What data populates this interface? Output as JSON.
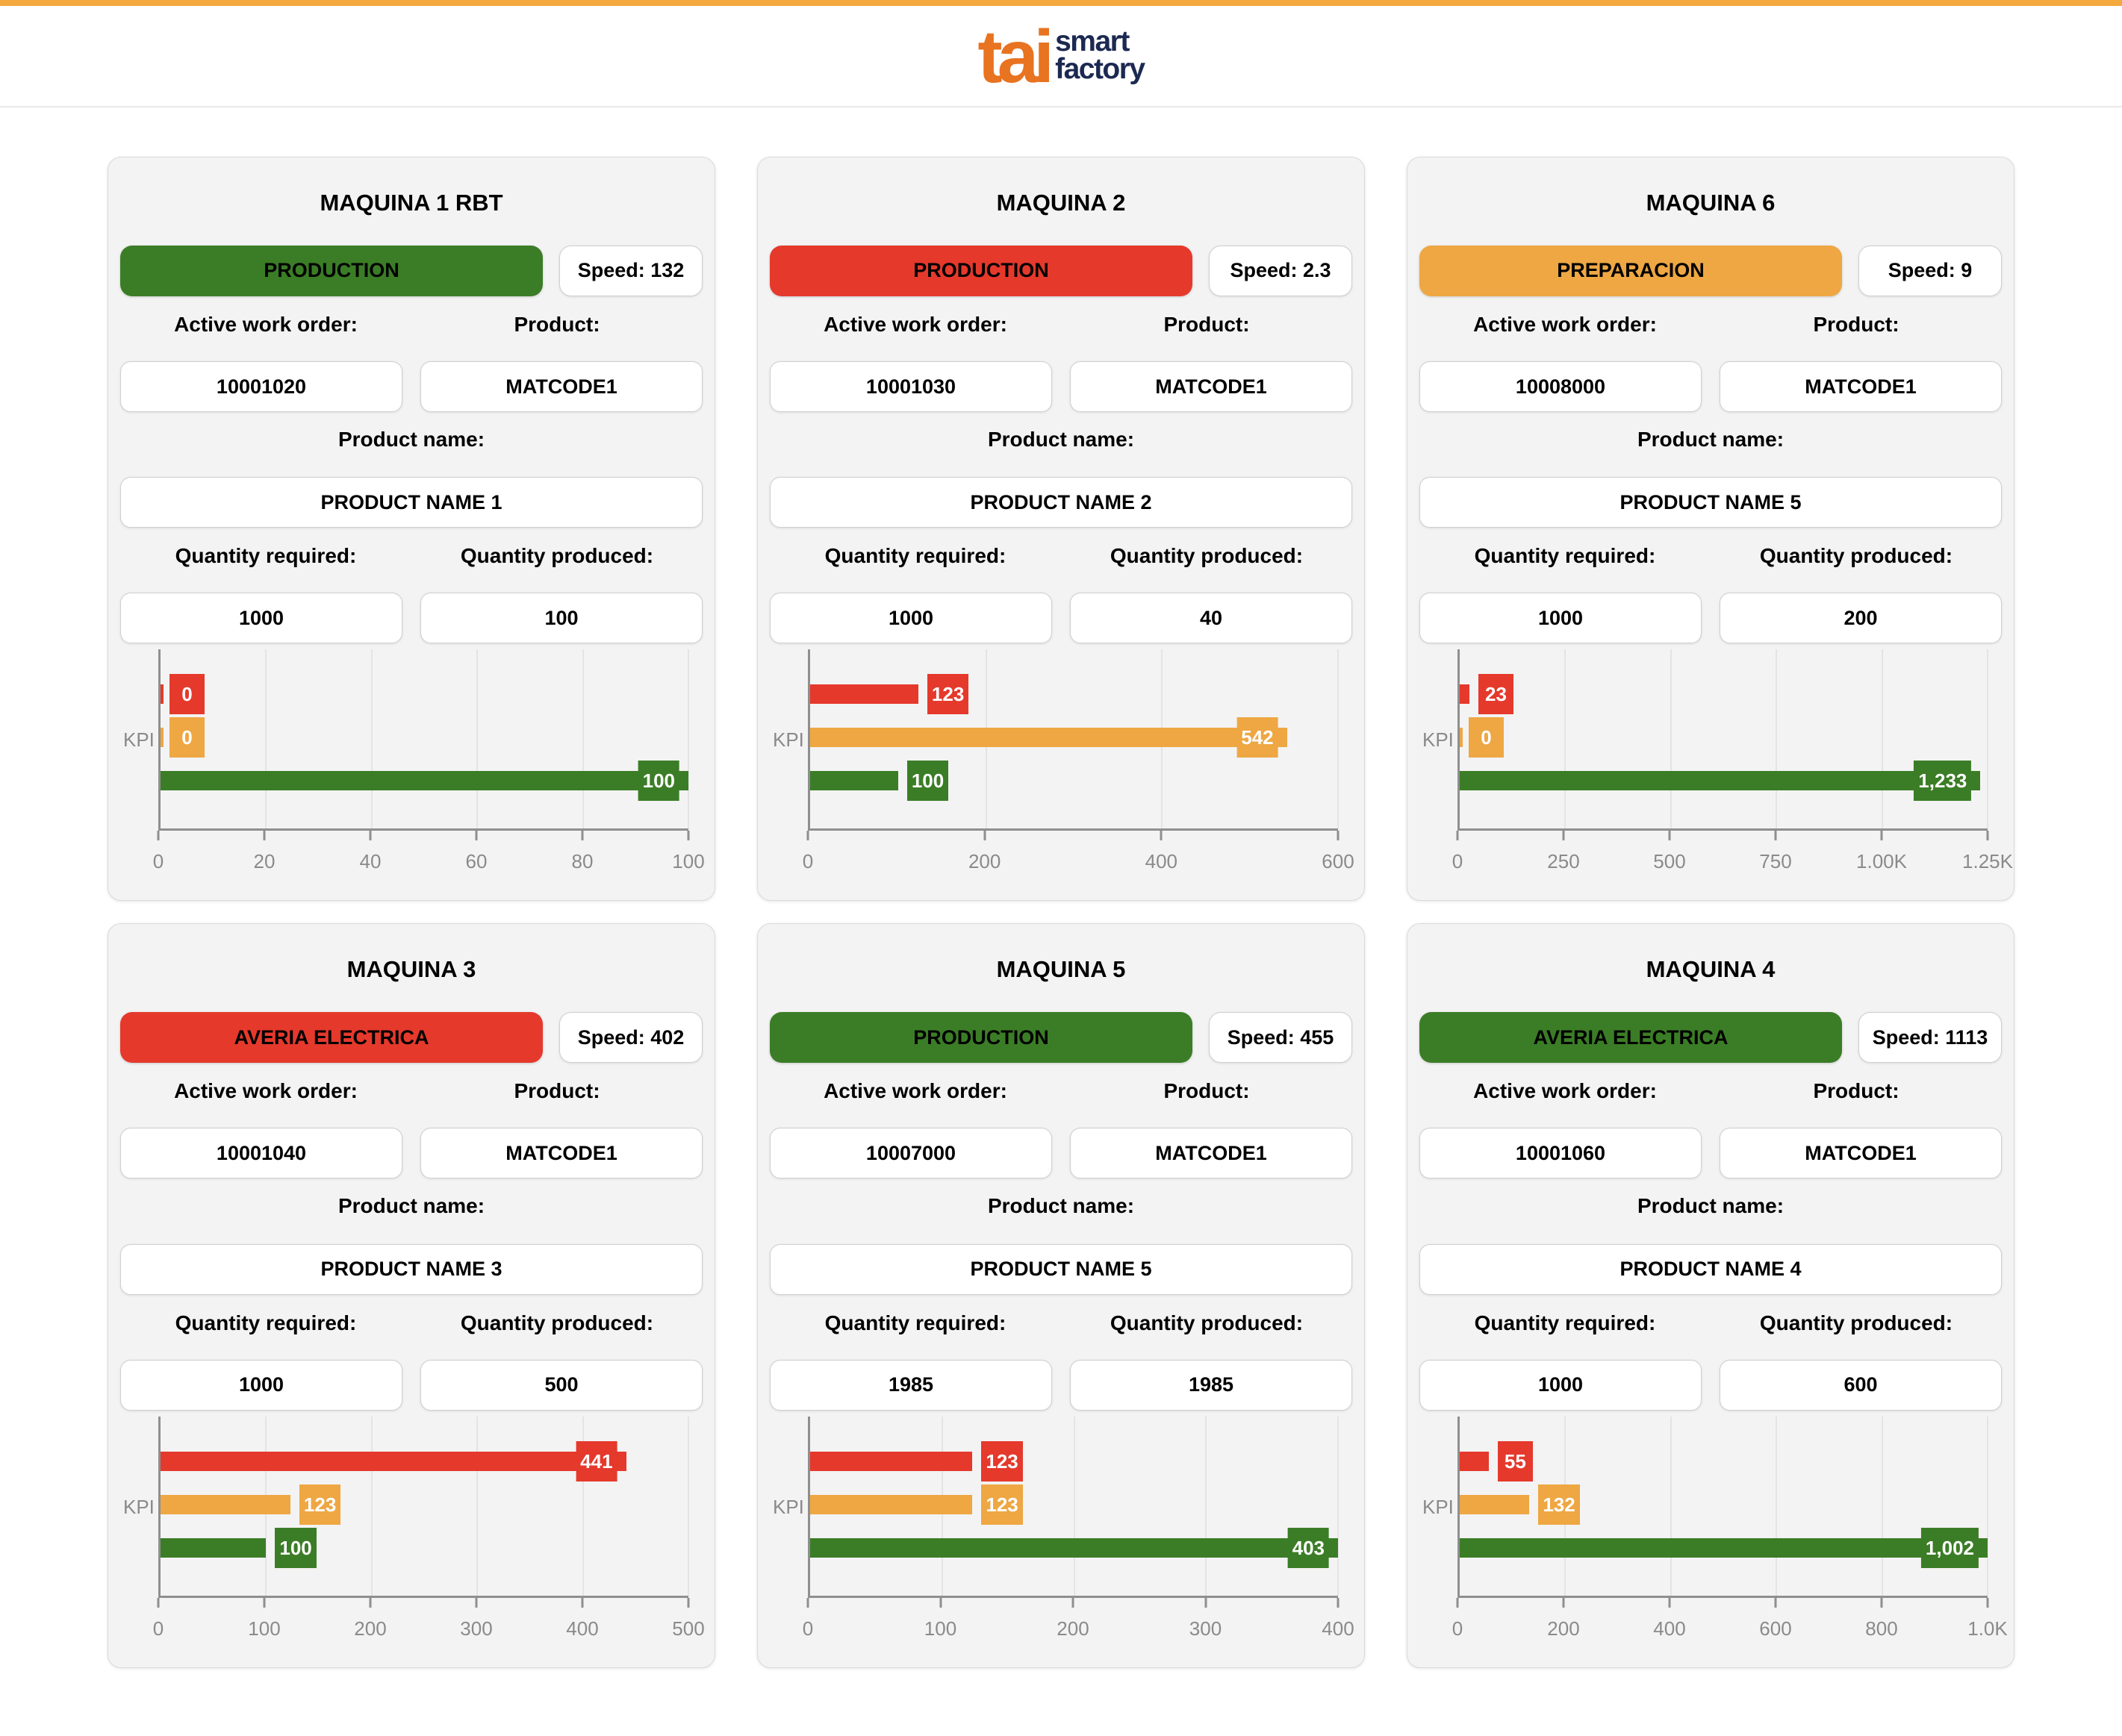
{
  "header": {
    "logo_tai": "tai",
    "logo_line1": "smart",
    "logo_line2": "factory"
  },
  "labels": {
    "active_work_order": "Active work order:",
    "product": "Product:",
    "product_name": "Product name:",
    "quantity_required": "Quantity required:",
    "quantity_produced": "Quantity produced:",
    "kpi": "KPI"
  },
  "colors": {
    "topbar_orange": "#f3a93d",
    "logo_orange": "#e87320",
    "logo_navy": "#1c2951",
    "status_green": "#3b7d26",
    "status_red": "#e5392c",
    "status_orange": "#eea743"
  },
  "machines": [
    {
      "title": "MAQUINA 1 RBT",
      "status_label": "PRODUCTION",
      "status_color": "#3b7d26",
      "speed_label": "Speed: 132",
      "work_order": "10001020",
      "product_code": "MATCODE1",
      "product_name": "PRODUCT NAME 1",
      "quantity_required": "1000",
      "quantity_produced": "100",
      "chart_data": {
        "type": "bar",
        "orientation": "horizontal",
        "category": "KPI",
        "xlim": [
          0,
          100
        ],
        "series": [
          {
            "name": "kpi-red",
            "color": "#e5392c",
            "value": 0,
            "label": "0"
          },
          {
            "name": "kpi-orange",
            "color": "#eea743",
            "value": 0,
            "label": "0"
          },
          {
            "name": "kpi-green",
            "color": "#3b7d26",
            "value": 100,
            "label": "100"
          }
        ],
        "ticks": [
          {
            "value": 0,
            "label": "0"
          },
          {
            "value": 20,
            "label": "20"
          },
          {
            "value": 40,
            "label": "40"
          },
          {
            "value": 60,
            "label": "60"
          },
          {
            "value": 80,
            "label": "80"
          },
          {
            "value": 100,
            "label": "100"
          }
        ]
      }
    },
    {
      "title": "MAQUINA 2",
      "status_label": "PRODUCTION",
      "status_color": "#e5392c",
      "speed_label": "Speed: 2.3",
      "work_order": "10001030",
      "product_code": "MATCODE1",
      "product_name": "PRODUCT NAME 2",
      "quantity_required": "1000",
      "quantity_produced": "40",
      "chart_data": {
        "type": "bar",
        "orientation": "horizontal",
        "category": "KPI",
        "xlim": [
          0,
          600
        ],
        "series": [
          {
            "name": "kpi-red",
            "color": "#e5392c",
            "value": 123,
            "label": "123"
          },
          {
            "name": "kpi-orange",
            "color": "#eea743",
            "value": 542,
            "label": "542"
          },
          {
            "name": "kpi-green",
            "color": "#3b7d26",
            "value": 100,
            "label": "100"
          }
        ],
        "ticks": [
          {
            "value": 0,
            "label": "0"
          },
          {
            "value": 200,
            "label": "200"
          },
          {
            "value": 400,
            "label": "400"
          },
          {
            "value": 600,
            "label": "600"
          }
        ]
      }
    },
    {
      "title": "MAQUINA 6",
      "status_label": "PREPARACION",
      "status_color": "#eea743",
      "speed_label": "Speed: 9",
      "work_order": "10008000",
      "product_code": "MATCODE1",
      "product_name": "PRODUCT NAME 5",
      "quantity_required": "1000",
      "quantity_produced": "200",
      "chart_data": {
        "type": "bar",
        "orientation": "horizontal",
        "category": "KPI",
        "xlim": [
          0,
          1250
        ],
        "series": [
          {
            "name": "kpi-red",
            "color": "#e5392c",
            "value": 23,
            "label": "23"
          },
          {
            "name": "kpi-orange",
            "color": "#eea743",
            "value": 0,
            "label": "0"
          },
          {
            "name": "kpi-green",
            "color": "#3b7d26",
            "value": 1233,
            "label": "1,233"
          }
        ],
        "ticks": [
          {
            "value": 0,
            "label": "0"
          },
          {
            "value": 250,
            "label": "250"
          },
          {
            "value": 500,
            "label": "500"
          },
          {
            "value": 750,
            "label": "750"
          },
          {
            "value": 1000,
            "label": "1.00K"
          },
          {
            "value": 1250,
            "label": "1.25K"
          }
        ]
      }
    },
    {
      "title": "MAQUINA 3",
      "status_label": "AVERIA ELECTRICA",
      "status_color": "#e5392c",
      "speed_label": "Speed: 402",
      "work_order": "10001040",
      "product_code": "MATCODE1",
      "product_name": "PRODUCT NAME 3",
      "quantity_required": "1000",
      "quantity_produced": "500",
      "chart_data": {
        "type": "bar",
        "orientation": "horizontal",
        "category": "KPI",
        "xlim": [
          0,
          500
        ],
        "series": [
          {
            "name": "kpi-red",
            "color": "#e5392c",
            "value": 441,
            "label": "441"
          },
          {
            "name": "kpi-orange",
            "color": "#eea743",
            "value": 123,
            "label": "123"
          },
          {
            "name": "kpi-green",
            "color": "#3b7d26",
            "value": 100,
            "label": "100"
          }
        ],
        "ticks": [
          {
            "value": 0,
            "label": "0"
          },
          {
            "value": 100,
            "label": "100"
          },
          {
            "value": 200,
            "label": "200"
          },
          {
            "value": 300,
            "label": "300"
          },
          {
            "value": 400,
            "label": "400"
          },
          {
            "value": 500,
            "label": "500"
          }
        ]
      }
    },
    {
      "title": "MAQUINA 5",
      "status_label": "PRODUCTION",
      "status_color": "#3b7d26",
      "speed_label": "Speed: 455",
      "work_order": "10007000",
      "product_code": "MATCODE1",
      "product_name": "PRODUCT NAME 5",
      "quantity_required": "1985",
      "quantity_produced": "1985",
      "chart_data": {
        "type": "bar",
        "orientation": "horizontal",
        "category": "KPI",
        "xlim": [
          0,
          400
        ],
        "series": [
          {
            "name": "kpi-red",
            "color": "#e5392c",
            "value": 123,
            "label": "123"
          },
          {
            "name": "kpi-orange",
            "color": "#eea743",
            "value": 123,
            "label": "123"
          },
          {
            "name": "kpi-green",
            "color": "#3b7d26",
            "value": 403,
            "label": "403"
          }
        ],
        "ticks": [
          {
            "value": 0,
            "label": "0"
          },
          {
            "value": 100,
            "label": "100"
          },
          {
            "value": 200,
            "label": "200"
          },
          {
            "value": 300,
            "label": "300"
          },
          {
            "value": 400,
            "label": "400"
          }
        ]
      }
    },
    {
      "title": "MAQUINA 4",
      "status_label": "AVERIA ELECTRICA",
      "status_color": "#3b7d26",
      "speed_label": "Speed: 1113",
      "work_order": "10001060",
      "product_code": "MATCODE1",
      "product_name": "PRODUCT NAME 4",
      "quantity_required": "1000",
      "quantity_produced": "600",
      "chart_data": {
        "type": "bar",
        "orientation": "horizontal",
        "category": "KPI",
        "xlim": [
          0,
          1000
        ],
        "series": [
          {
            "name": "kpi-red",
            "color": "#e5392c",
            "value": 55,
            "label": "55"
          },
          {
            "name": "kpi-orange",
            "color": "#eea743",
            "value": 132,
            "label": "132"
          },
          {
            "name": "kpi-green",
            "color": "#3b7d26",
            "value": 1002,
            "label": "1,002"
          }
        ],
        "ticks": [
          {
            "value": 0,
            "label": "0"
          },
          {
            "value": 200,
            "label": "200"
          },
          {
            "value": 400,
            "label": "400"
          },
          {
            "value": 600,
            "label": "600"
          },
          {
            "value": 800,
            "label": "800"
          },
          {
            "value": 1000,
            "label": "1.0K"
          }
        ]
      }
    }
  ]
}
